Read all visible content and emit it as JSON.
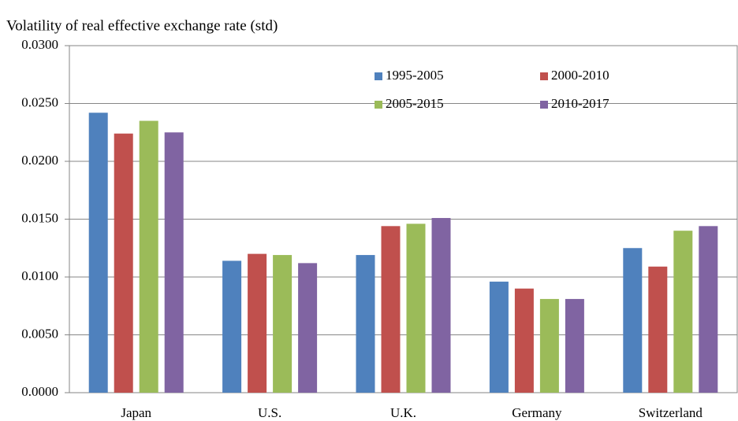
{
  "chart_data": {
    "type": "bar",
    "title": "Volatility  of real effective exchange rate (std)",
    "categories": [
      "Japan",
      "U.S.",
      "U.K.",
      "Germany",
      "Switzerland"
    ],
    "series": [
      {
        "name": "1995-2005",
        "color": "#4f81bd",
        "values": [
          0.0242,
          0.0114,
          0.0119,
          0.0096,
          0.0125
        ]
      },
      {
        "name": "2000-2010",
        "color": "#c0504d",
        "values": [
          0.0224,
          0.012,
          0.0144,
          0.009,
          0.0109
        ]
      },
      {
        "name": "2005-2015",
        "color": "#9bbb59",
        "values": [
          0.0235,
          0.0119,
          0.0146,
          0.0081,
          0.014
        ]
      },
      {
        "name": "2010-2017",
        "color": "#8064a2",
        "values": [
          0.0225,
          0.0112,
          0.0151,
          0.0081,
          0.0144
        ]
      }
    ],
    "ylim": [
      0,
      0.03
    ],
    "yticks": [
      {
        "value": 0,
        "label": "0.0000"
      },
      {
        "value": 0.005,
        "label": "0.0050"
      },
      {
        "value": 0.01,
        "label": "0.0100"
      },
      {
        "value": 0.015,
        "label": "0.0150"
      },
      {
        "value": 0.02,
        "label": "0.0200"
      },
      {
        "value": 0.025,
        "label": "0.0250"
      },
      {
        "value": 0.03,
        "label": "0.0300"
      }
    ],
    "grid": true,
    "legend": "upper right"
  }
}
